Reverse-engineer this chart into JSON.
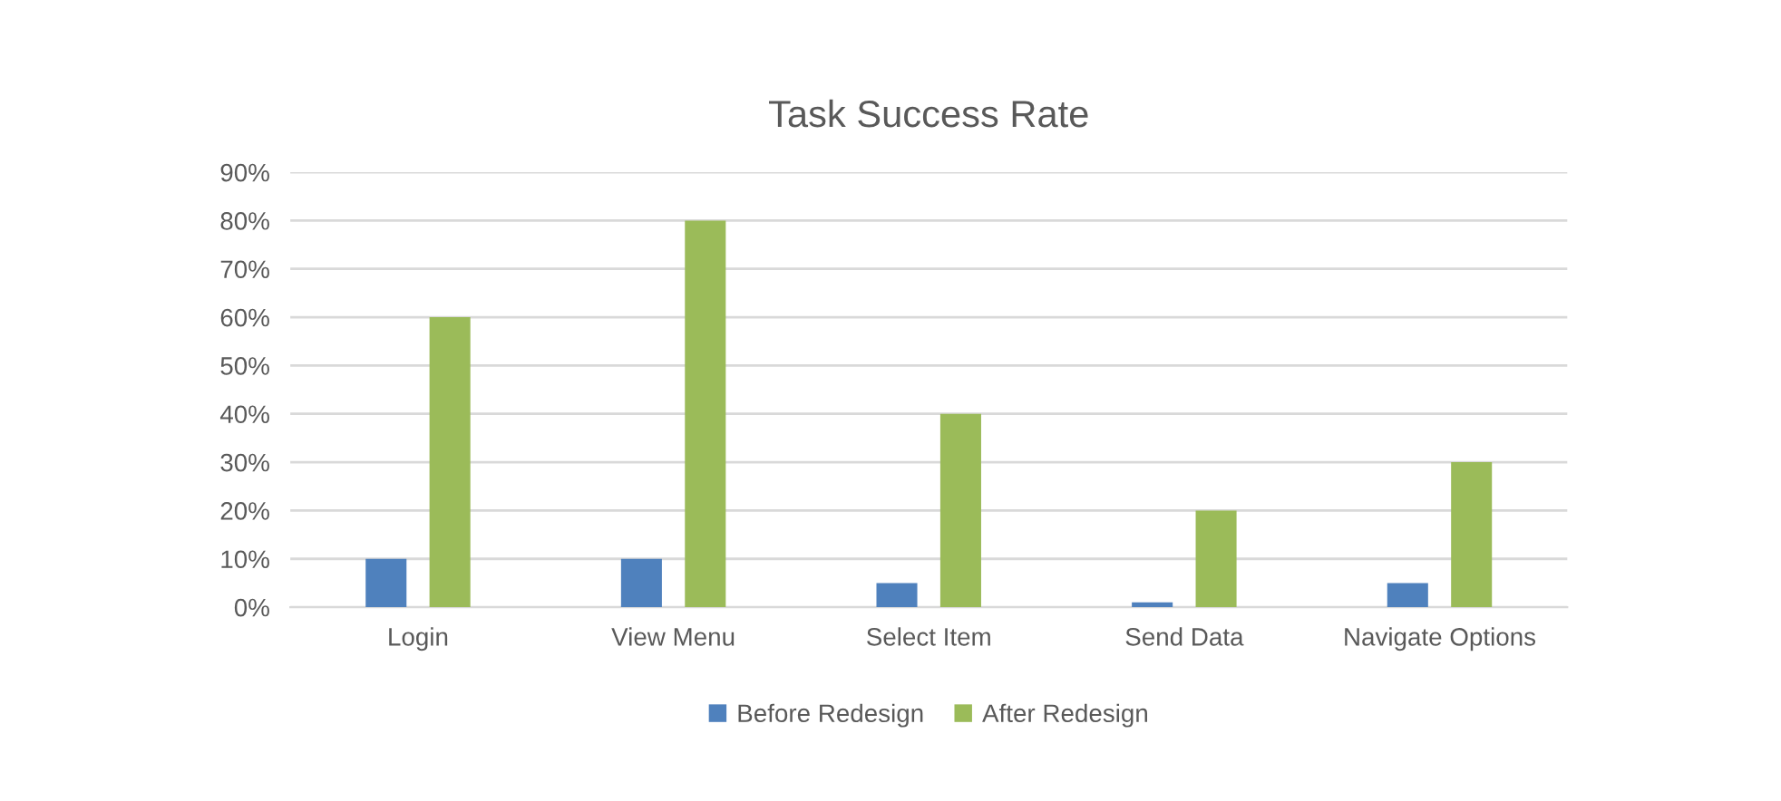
{
  "chart_data": {
    "type": "bar",
    "title": "Task Success Rate",
    "categories": [
      "Login",
      "View Menu",
      "Select Item",
      "Send Data",
      "Navigate Options"
    ],
    "series": [
      {
        "name": "Before Redesign",
        "color": "#4f81bd",
        "values": [
          10,
          10,
          5,
          1,
          5
        ]
      },
      {
        "name": "After Redesign",
        "color": "#9bbb59",
        "values": [
          60,
          80,
          40,
          20,
          30
        ]
      }
    ],
    "ylim": [
      0,
      90
    ],
    "yticks": [
      {
        "value": 0,
        "label": "0%"
      },
      {
        "value": 10,
        "label": "10%"
      },
      {
        "value": 20,
        "label": "20%"
      },
      {
        "value": 30,
        "label": "30%"
      },
      {
        "value": 40,
        "label": "40%"
      },
      {
        "value": 50,
        "label": "50%"
      },
      {
        "value": 60,
        "label": "60%"
      },
      {
        "value": 70,
        "label": "70%"
      },
      {
        "value": 80,
        "label": "80%"
      },
      {
        "value": 90,
        "label": "90%"
      }
    ],
    "grid": "y",
    "legend": "bottom"
  }
}
